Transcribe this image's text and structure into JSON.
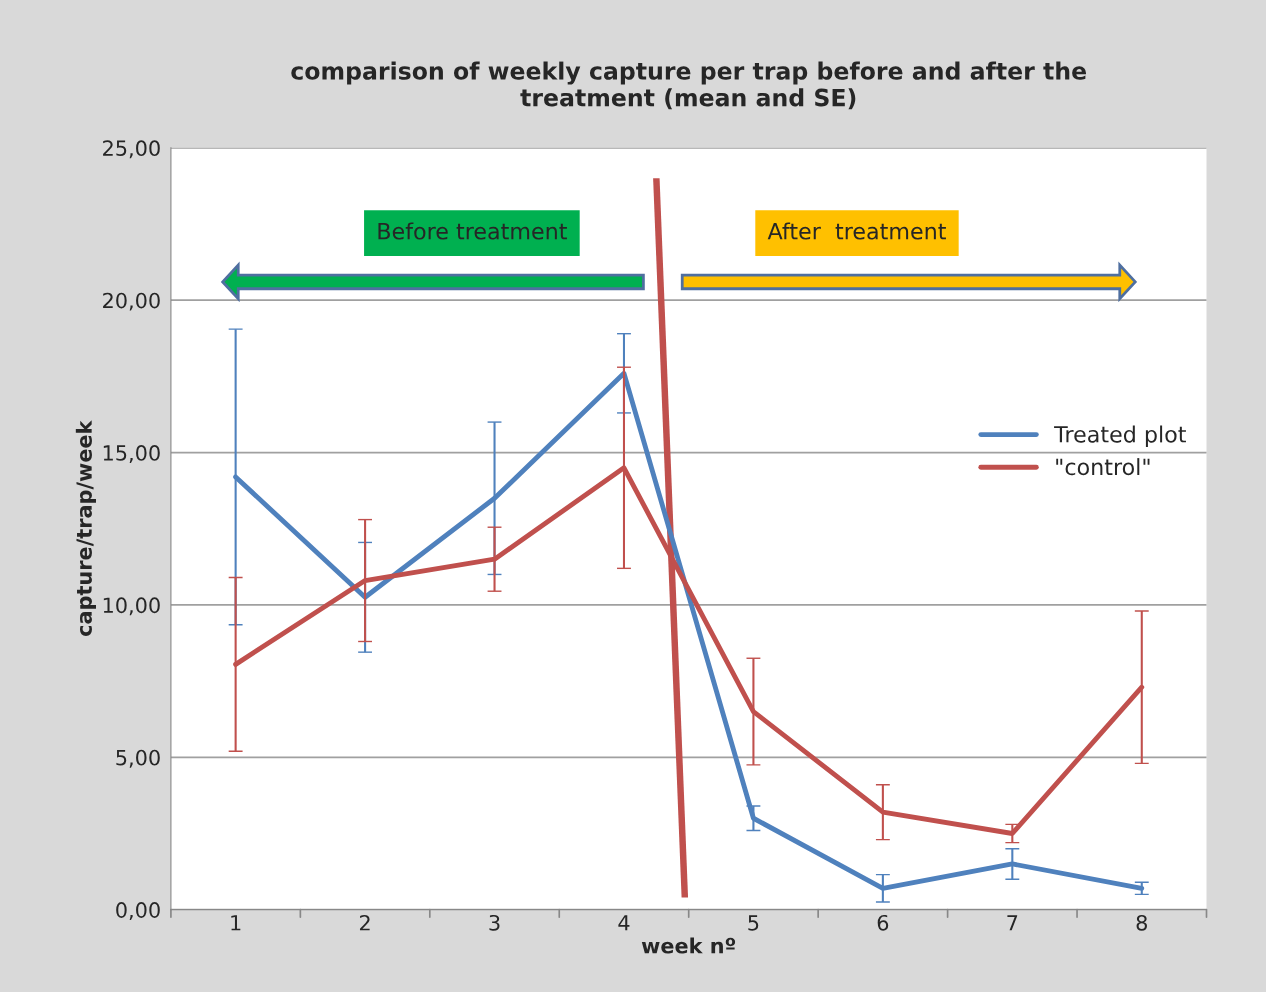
{
  "chart_data": {
    "type": "line",
    "title": "comparison of weekly capture per trap before and after the\ntreatment (mean and SE)",
    "xlabel": "week nº",
    "ylabel": "capture/trap/week",
    "categories": [
      "1",
      "2",
      "3",
      "4",
      "5",
      "6",
      "7",
      "8"
    ],
    "series": [
      {
        "name": "Treated plot",
        "color": "#4f81bd",
        "values": [
          14.2,
          10.25,
          13.5,
          17.6,
          3.0,
          0.7,
          1.5,
          0.7
        ],
        "errors": [
          4.85,
          1.8,
          2.5,
          1.3,
          0.4,
          0.45,
          0.5,
          0.2
        ]
      },
      {
        "name": "\"control\"",
        "color": "#c0504d",
        "values": [
          8.05,
          10.8,
          11.5,
          14.5,
          6.5,
          3.2,
          2.5,
          7.3
        ],
        "errors": [
          2.85,
          2.0,
          1.05,
          3.3,
          1.75,
          0.9,
          0.3,
          2.5
        ]
      }
    ],
    "ylim": [
      0,
      25
    ],
    "yticks": [
      {
        "value": 0,
        "label": "0,00"
      },
      {
        "value": 5,
        "label": "5,00"
      },
      {
        "value": 10,
        "label": "10,00"
      },
      {
        "value": 15,
        "label": "15,00"
      },
      {
        "value": 20,
        "label": "20,00"
      },
      {
        "value": 25,
        "label": "25,00"
      }
    ],
    "annotations": [
      "Before treatment",
      "After  treatment"
    ],
    "grid": "y",
    "legend": "right",
    "marker": "none",
    "line_style": "solid"
  }
}
